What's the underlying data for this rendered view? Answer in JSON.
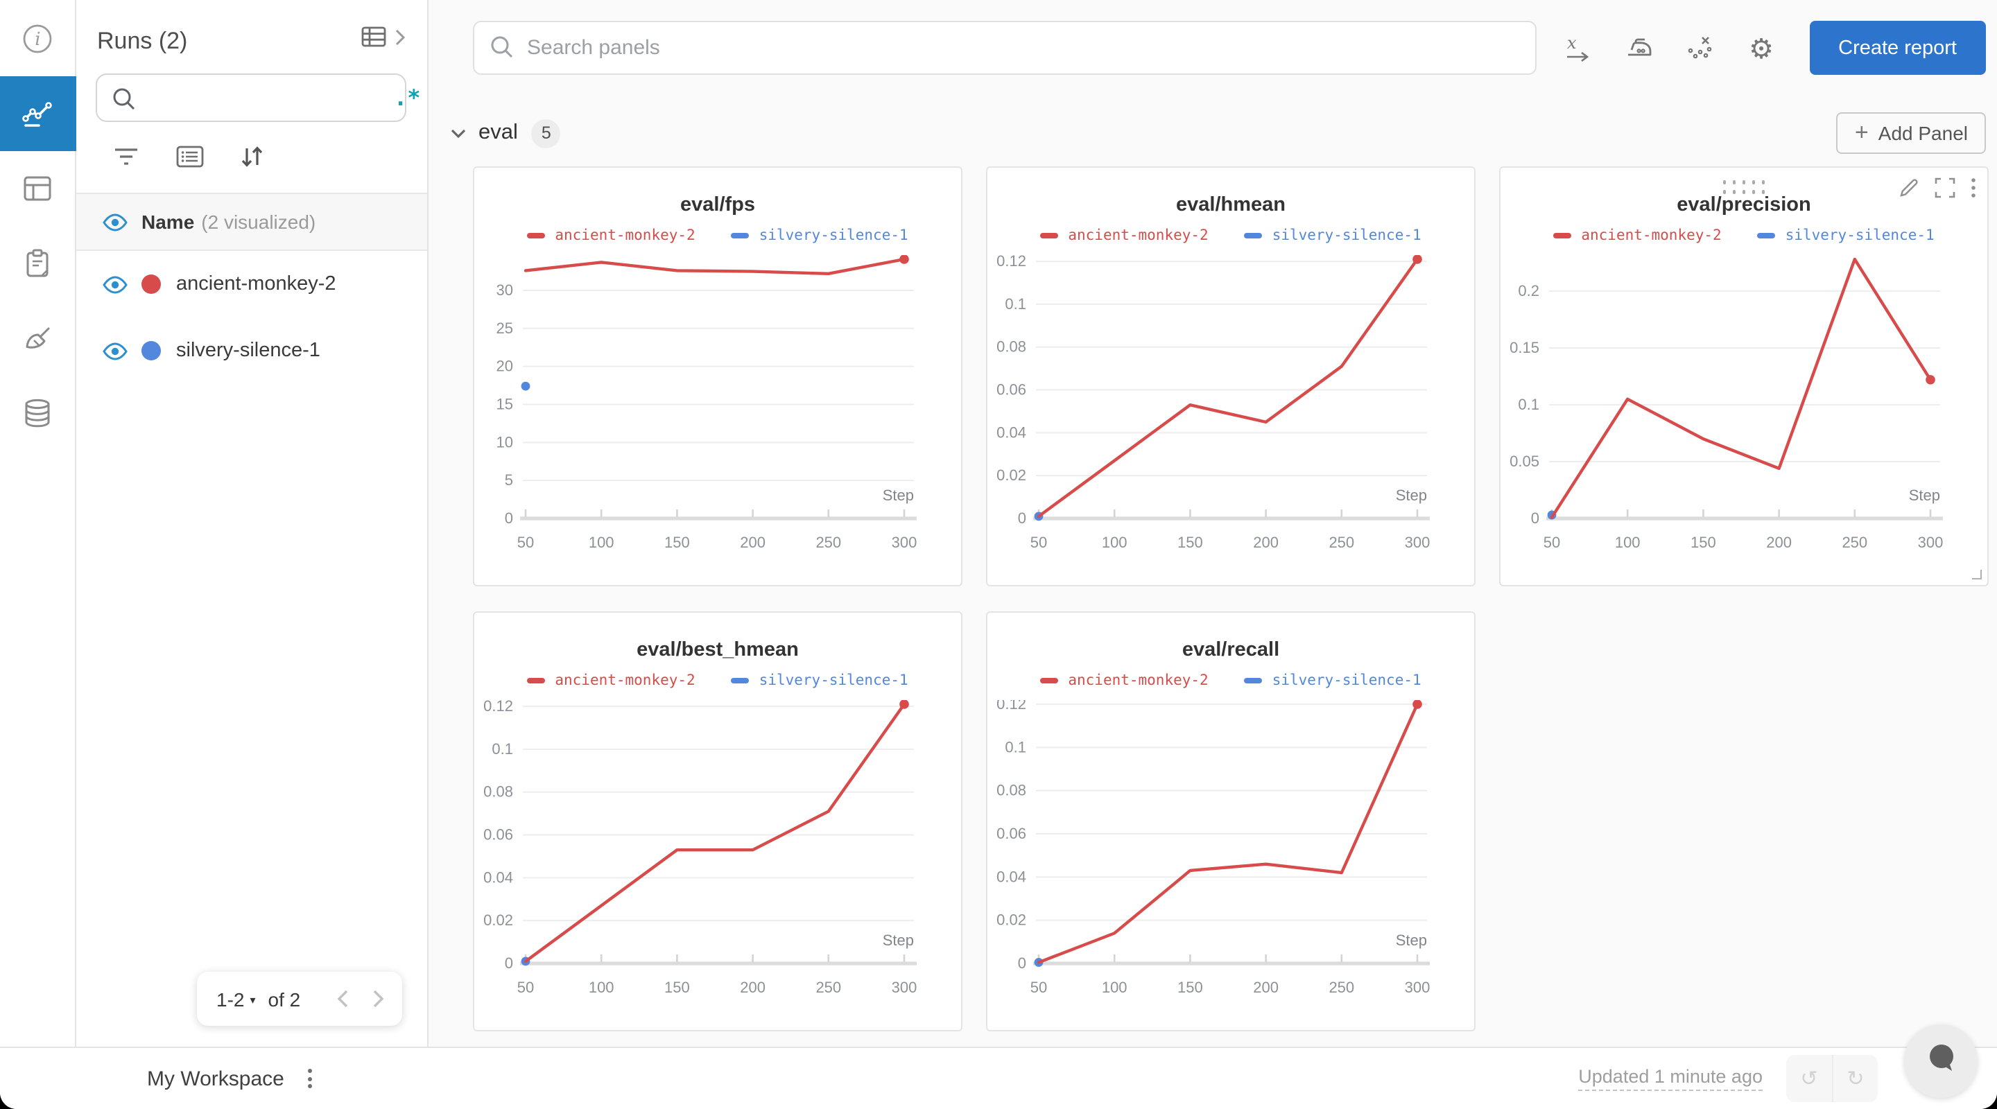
{
  "colors": {
    "accent_blue": "#2d75cc",
    "nav_active_blue": "#2180c0",
    "teal_regex": "#12a0b4",
    "run_red": "#d84b4b",
    "run_blue": "#5387dd",
    "eye_blue": "#2b8fd0"
  },
  "left_rail": {
    "items": [
      {
        "icon": "info-icon",
        "active": false
      },
      {
        "icon": "line-chart-icon",
        "active": true
      },
      {
        "icon": "table-icon",
        "active": false
      },
      {
        "icon": "clipboard-icon",
        "active": false
      },
      {
        "icon": "broom-icon",
        "active": false
      },
      {
        "icon": "database-icon",
        "active": false
      }
    ]
  },
  "sidebar": {
    "title": "Runs (2)",
    "search": {
      "value": "",
      "regex_label": ".*"
    },
    "header": {
      "name_label": "Name",
      "visualized_label": "(2 visualized)"
    },
    "runs": [
      {
        "name": "ancient-monkey-2",
        "color": "#d84b4b",
        "visible": true
      },
      {
        "name": "silvery-silence-1",
        "color": "#5387dd",
        "visible": true
      }
    ],
    "pagination": {
      "range": "1-2",
      "of_label": "of 2"
    }
  },
  "topbar": {
    "search_placeholder": "Search panels",
    "icons": [
      "x-axis-icon",
      "smoothing-icon",
      "outliers-icon",
      "settings-gear-icon"
    ],
    "create_report_label": "Create report"
  },
  "section": {
    "title": "eval",
    "count": "5",
    "add_panel_label": "Add Panel",
    "add_panel_plus": "+"
  },
  "bottombar": {
    "workspace_label": "My Workspace",
    "updated_label": "Updated 1 minute ago",
    "undo_glyph": "↺",
    "redo_glyph": "↻"
  },
  "chart_data": [
    {
      "type": "line",
      "title": "eval/fps",
      "xlabel": "Step",
      "x": [
        50,
        100,
        150,
        200,
        250,
        300
      ],
      "xtick_labels": [
        "50",
        "100",
        "150",
        "200",
        "250",
        "300"
      ],
      "ytick_values": [
        0,
        5,
        10,
        15,
        20,
        25,
        30
      ],
      "ytick_labels": [
        "0",
        "5",
        "10",
        "15",
        "20",
        "25",
        "30"
      ],
      "ylim": [
        0,
        34.1
      ],
      "grid": true,
      "legend_position": "top",
      "hovered": false,
      "series": [
        {
          "name": "ancient-monkey-2",
          "color": "#d84b4b",
          "x": [
            50,
            100,
            150,
            200,
            250,
            300
          ],
          "y": [
            32.6,
            33.7,
            32.6,
            32.5,
            32.2,
            34.1
          ]
        },
        {
          "name": "silvery-silence-1",
          "color": "#5387dd",
          "x": [
            50
          ],
          "y": [
            17.4
          ]
        }
      ]
    },
    {
      "type": "line",
      "title": "eval/hmean",
      "xlabel": "Step",
      "x": [
        50,
        100,
        150,
        200,
        250,
        300
      ],
      "xtick_labels": [
        "50",
        "100",
        "150",
        "200",
        "250",
        "300"
      ],
      "ytick_values": [
        0,
        0.02,
        0.04,
        0.06,
        0.08,
        0.1,
        0.12
      ],
      "ytick_labels": [
        "0",
        "0.02",
        "0.04",
        "0.06",
        "0.08",
        "0.1",
        "0.12"
      ],
      "ylim": [
        0,
        0.121
      ],
      "grid": true,
      "legend_position": "top",
      "hovered": false,
      "series": [
        {
          "name": "ancient-monkey-2",
          "color": "#d84b4b",
          "x": [
            50,
            100,
            150,
            200,
            250,
            300
          ],
          "y": [
            0.001,
            0.027,
            0.053,
            0.045,
            0.071,
            0.121
          ]
        },
        {
          "name": "silvery-silence-1",
          "color": "#5387dd",
          "x": [
            50
          ],
          "y": [
            0.001
          ]
        }
      ]
    },
    {
      "type": "line",
      "title": "eval/precision",
      "xlabel": "Step",
      "x": [
        50,
        100,
        150,
        200,
        250,
        300
      ],
      "xtick_labels": [
        "50",
        "100",
        "150",
        "200",
        "250",
        "300"
      ],
      "ytick_values": [
        0,
        0.05,
        0.1,
        0.15,
        0.2
      ],
      "ytick_labels": [
        "0",
        "0.05",
        "0.1",
        "0.15",
        "0.2"
      ],
      "ylim": [
        0,
        0.228
      ],
      "grid": true,
      "legend_position": "top",
      "hovered": true,
      "series": [
        {
          "name": "ancient-monkey-2",
          "color": "#d84b4b",
          "x": [
            50,
            100,
            150,
            200,
            250,
            300
          ],
          "y": [
            0.001,
            0.105,
            0.07,
            0.044,
            0.228,
            0.122
          ]
        },
        {
          "name": "silvery-silence-1",
          "color": "#5387dd",
          "x": [
            50
          ],
          "y": [
            0.003
          ]
        }
      ]
    },
    {
      "type": "line",
      "title": "eval/best_hmean",
      "xlabel": "Step",
      "x": [
        50,
        100,
        150,
        200,
        250,
        300
      ],
      "xtick_labels": [
        "50",
        "100",
        "150",
        "200",
        "250",
        "300"
      ],
      "ytick_values": [
        0,
        0.02,
        0.04,
        0.06,
        0.08,
        0.1,
        0.12
      ],
      "ytick_labels": [
        "0",
        "0.02",
        "0.04",
        "0.06",
        "0.08",
        "0.1",
        "0.12"
      ],
      "ylim": [
        0,
        0.121
      ],
      "grid": true,
      "legend_position": "top",
      "hovered": false,
      "series": [
        {
          "name": "ancient-monkey-2",
          "color": "#d84b4b",
          "x": [
            50,
            100,
            150,
            200,
            250,
            300
          ],
          "y": [
            0.001,
            0.027,
            0.053,
            0.053,
            0.071,
            0.121
          ]
        },
        {
          "name": "silvery-silence-1",
          "color": "#5387dd",
          "x": [
            50
          ],
          "y": [
            0.001
          ]
        }
      ]
    },
    {
      "type": "line",
      "title": "eval/recall",
      "xlabel": "Step",
      "x": [
        50,
        100,
        150,
        200,
        250,
        300
      ],
      "xtick_labels": [
        "50",
        "100",
        "150",
        "200",
        "250",
        "300"
      ],
      "ytick_values": [
        0,
        0.02,
        0.04,
        0.06,
        0.08,
        0.1,
        0.12
      ],
      "ytick_labels": [
        "0",
        "0.02",
        "0.04",
        "0.06",
        "0.08",
        "0.1",
        "0.12"
      ],
      "ylim": [
        0,
        0.12
      ],
      "grid": true,
      "legend_position": "top",
      "hovered": false,
      "series": [
        {
          "name": "ancient-monkey-2",
          "color": "#d84b4b",
          "x": [
            50,
            100,
            150,
            200,
            250,
            300
          ],
          "y": [
            0.0005,
            0.014,
            0.043,
            0.046,
            0.042,
            0.12
          ]
        },
        {
          "name": "silvery-silence-1",
          "color": "#5387dd",
          "x": [
            50
          ],
          "y": [
            0.0005
          ]
        }
      ]
    }
  ]
}
